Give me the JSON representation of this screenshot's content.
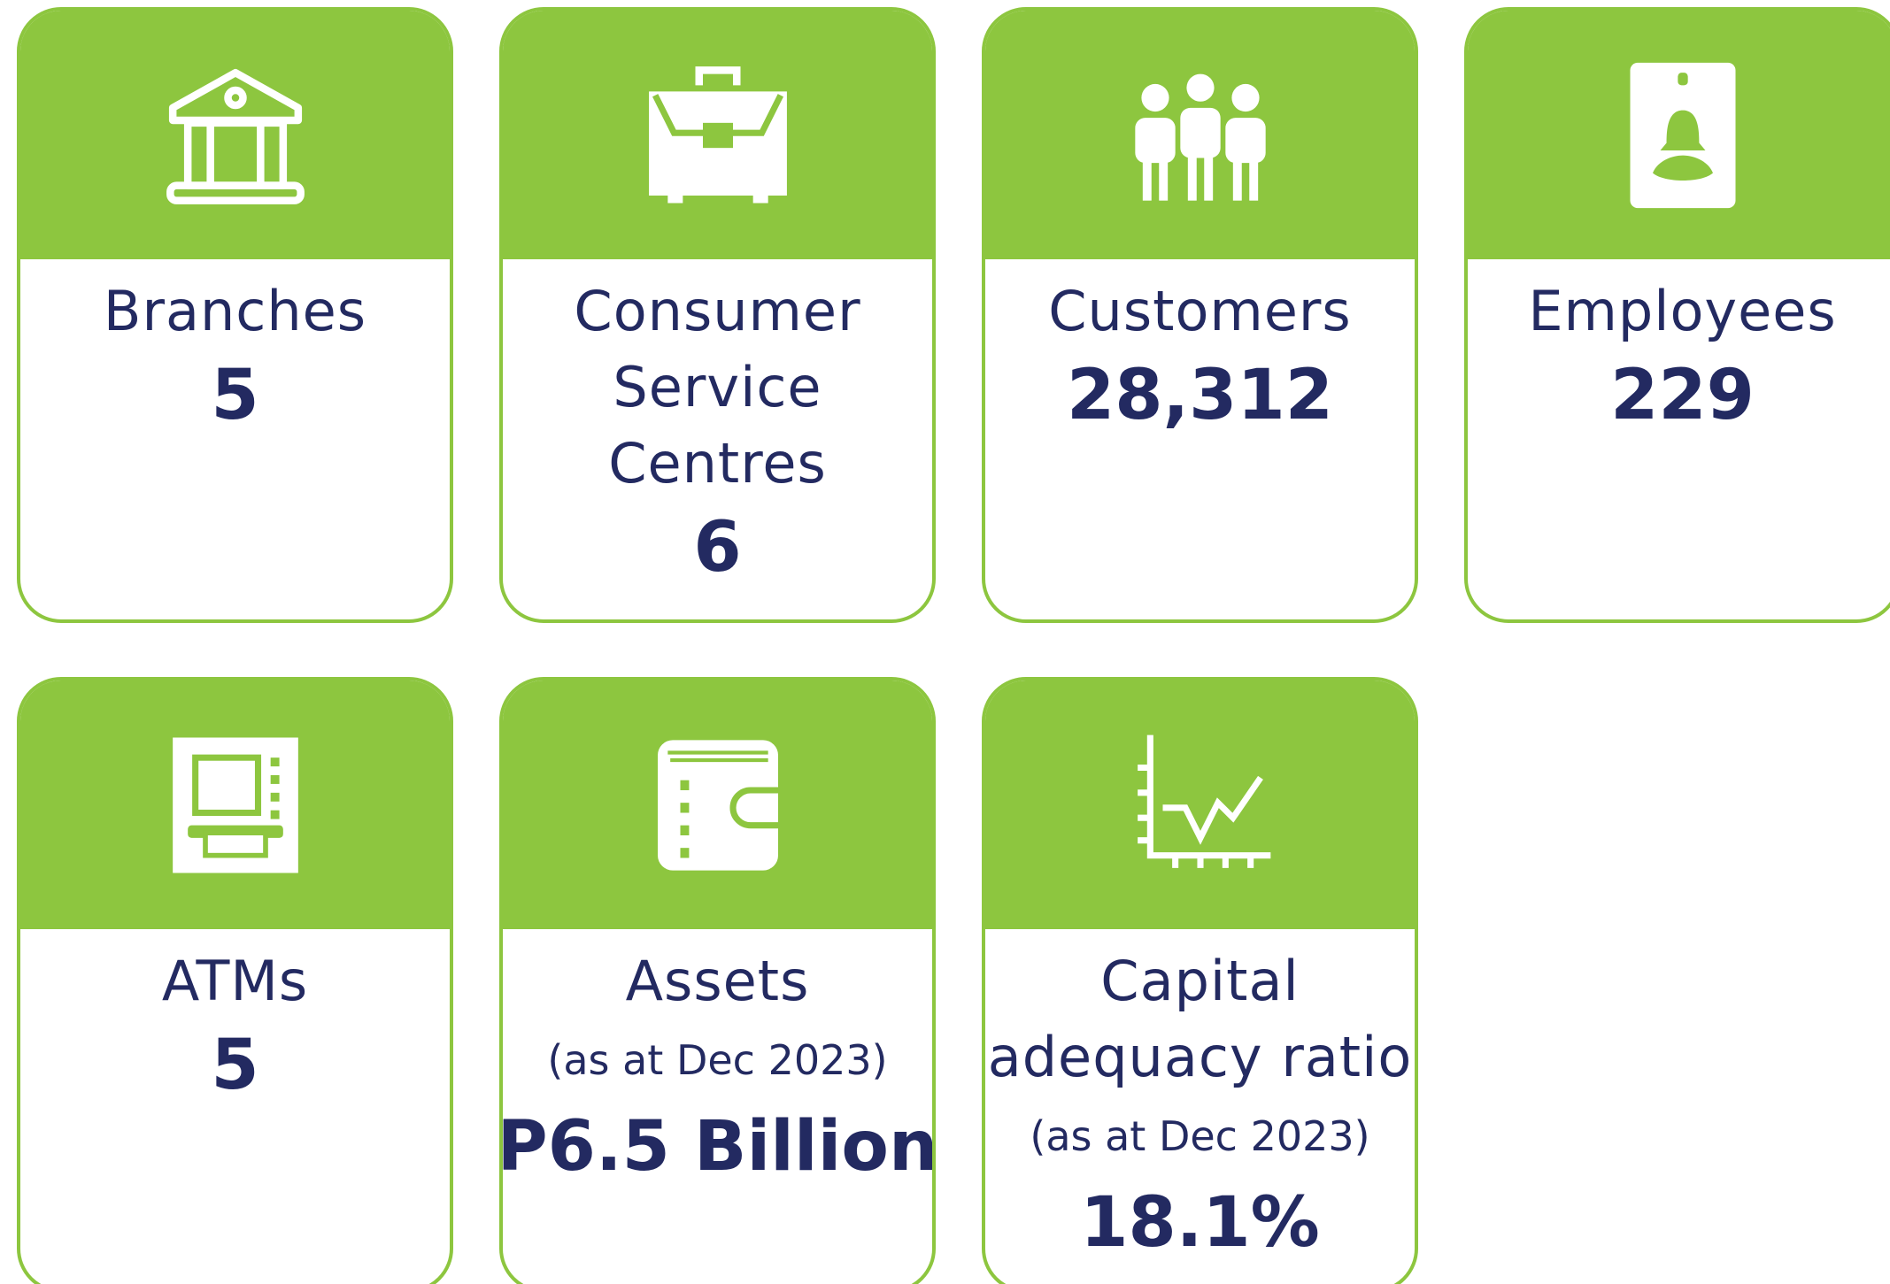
{
  "cards": [
    {
      "title_lines": [
        "Branches"
      ],
      "value": "5"
    },
    {
      "title_lines": [
        "Consumer",
        "Service",
        "Centres"
      ],
      "value": "6"
    },
    {
      "title_lines": [
        "Customers"
      ],
      "value": "28,312"
    },
    {
      "title_lines": [
        "Employees"
      ],
      "value": "229"
    },
    {
      "title_lines": [
        "ATMs"
      ],
      "value": "5"
    },
    {
      "title_lines": [
        "Assets"
      ],
      "note": "(as at Dec 2023)",
      "value": "P6.5 Billion"
    },
    {
      "title_lines": [
        "Capital",
        "adequacy ratio"
      ],
      "note": "(as at Dec 2023)",
      "value": "18.1%"
    }
  ]
}
